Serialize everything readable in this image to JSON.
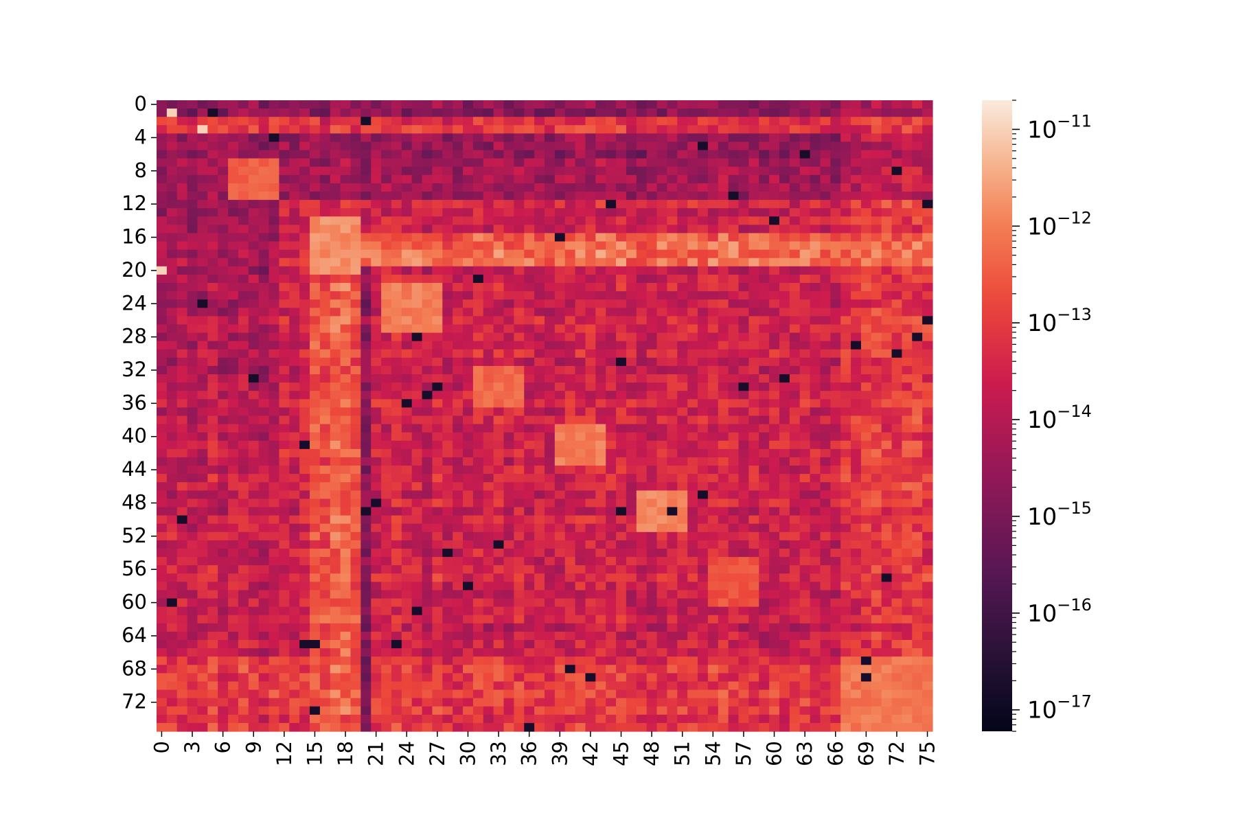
{
  "chart_data": {
    "type": "heatmap",
    "rows": 76,
    "cols": 76,
    "row_tick_labels": [
      "0",
      "4",
      "8",
      "12",
      "16",
      "20",
      "24",
      "28",
      "32",
      "36",
      "40",
      "44",
      "48",
      "52",
      "56",
      "60",
      "64",
      "68",
      "72"
    ],
    "row_tick_values": [
      0,
      4,
      8,
      12,
      16,
      20,
      24,
      28,
      32,
      36,
      40,
      44,
      48,
      52,
      56,
      60,
      64,
      68,
      72
    ],
    "col_tick_labels": [
      "0",
      "3",
      "6",
      "9",
      "12",
      "15",
      "18",
      "21",
      "24",
      "27",
      "30",
      "33",
      "36",
      "39",
      "42",
      "45",
      "48",
      "51",
      "54",
      "57",
      "60",
      "63",
      "66",
      "69",
      "72",
      "75"
    ],
    "col_tick_values": [
      0,
      3,
      6,
      9,
      12,
      15,
      18,
      21,
      24,
      27,
      30,
      33,
      36,
      39,
      42,
      45,
      48,
      51,
      54,
      57,
      60,
      63,
      66,
      69,
      72,
      75
    ],
    "colorbar": {
      "scale": "log",
      "range": [
        6e-18,
        2e-11
      ],
      "colormap": "rocket",
      "major_ticks": [
        {
          "value": -11,
          "base": "10",
          "exp": "−11"
        },
        {
          "value": -12,
          "base": "10",
          "exp": "−12"
        },
        {
          "value": -13,
          "base": "10",
          "exp": "−13"
        },
        {
          "value": -14,
          "base": "10",
          "exp": "−14"
        },
        {
          "value": -15,
          "base": "10",
          "exp": "−15"
        },
        {
          "value": -16,
          "base": "10",
          "exp": "−16"
        },
        {
          "value": -17,
          "base": "10",
          "exp": "−17"
        }
      ]
    },
    "blocks": [
      {
        "rows": [
          7,
          11
        ],
        "cols": [
          7,
          11
        ],
        "log10": -12.4
      },
      {
        "rows": [
          14,
          20
        ],
        "cols": [
          15,
          19
        ],
        "log10": -11.8
      },
      {
        "rows": [
          22,
          27
        ],
        "cols": [
          22,
          27
        ],
        "log10": -12.0
      },
      {
        "rows": [
          32,
          36
        ],
        "cols": [
          31,
          35
        ],
        "log10": -12.3
      },
      {
        "rows": [
          39,
          43
        ],
        "cols": [
          39,
          43
        ],
        "log10": -12.0
      },
      {
        "rows": [
          47,
          51
        ],
        "cols": [
          47,
          51
        ],
        "log10": -11.9
      },
      {
        "rows": [
          55,
          60
        ],
        "cols": [
          54,
          58
        ],
        "log10": -12.6
      },
      {
        "rows": [
          67,
          75
        ],
        "cols": [
          67,
          75
        ],
        "log10": -12.1
      }
    ],
    "outliers": [
      {
        "row": 1,
        "col": 1,
        "log10": -11.0
      },
      {
        "row": 3,
        "col": 4,
        "log10": -11.0
      },
      {
        "row": 20,
        "col": 0,
        "log10": -11.0
      }
    ]
  }
}
